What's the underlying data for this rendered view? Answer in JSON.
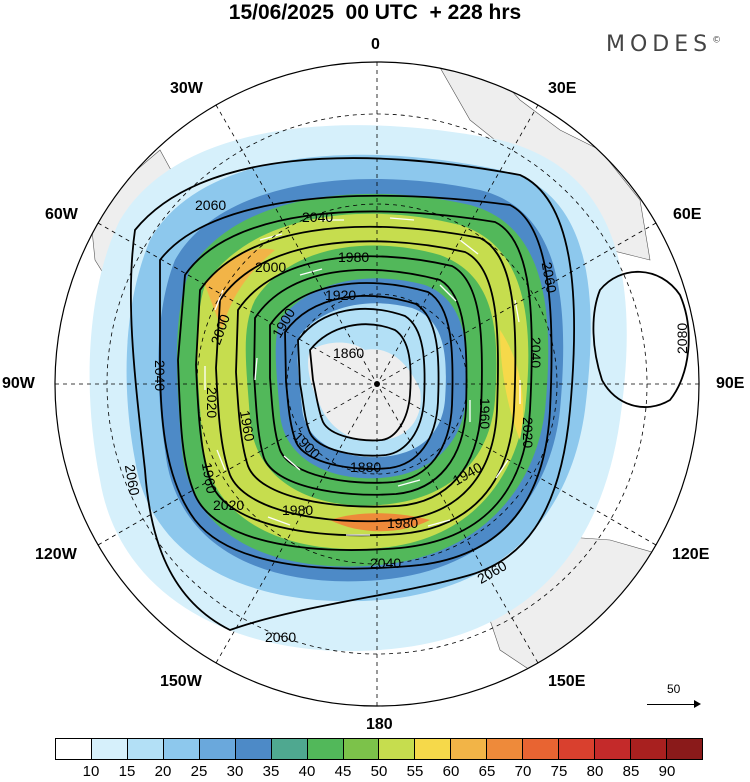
{
  "title": "15/06/2025  00 UTC  + 228 hrs",
  "brand": "MODES",
  "brand_mark": "©",
  "map": {
    "projection": "south-polar-stereographic",
    "longitude_labels": {
      "top": "0",
      "bottom": "180",
      "left": "90W",
      "right": "90E",
      "top_left": "30W",
      "top_right": "30E",
      "upper_left": "60W",
      "upper_right": "60E",
      "lower_left": "120W",
      "lower_right": "120E",
      "bottom_left": "150W",
      "bottom_right": "150E"
    },
    "contour_labels": [
      "2060",
      "2040",
      "1980",
      "2000",
      "2000",
      "1920",
      "1900",
      "1860",
      "2020",
      "2040",
      "2060",
      "2060",
      "2040",
      "1960",
      "2020",
      "1900",
      "1880",
      "1940",
      "1980",
      "2020",
      "1960",
      "1980",
      "2040",
      "2060",
      "2060",
      "1960",
      "2080"
    ],
    "contour_levels_gpm": [
      1860,
      1880,
      1900,
      1920,
      1940,
      1960,
      1980,
      2000,
      2020,
      2040,
      2060,
      2080
    ],
    "reference_vector": "50"
  },
  "legend": {
    "ticks": [
      "10",
      "15",
      "20",
      "25",
      "30",
      "35",
      "40",
      "45",
      "50",
      "55",
      "60",
      "65",
      "70",
      "75",
      "80",
      "85",
      "90"
    ],
    "colors": [
      "#ffffff",
      "#d6f0fb",
      "#b3e0f6",
      "#8dc8ed",
      "#6aa8dc",
      "#4d8ac7",
      "#4fa890",
      "#52b85a",
      "#7cc24a",
      "#c6dd4e",
      "#f6d94a",
      "#f2b447",
      "#ee8a3a",
      "#e86432",
      "#d9402e",
      "#c42a2a",
      "#a8201f",
      "#8a1a1a"
    ]
  }
}
